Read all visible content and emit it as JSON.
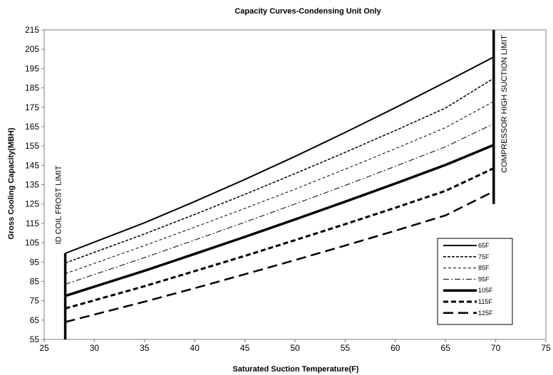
{
  "chart_data": {
    "type": "line",
    "title": "Capacity Curves-Condensing Unit Only",
    "xlabel": "Saturated Suction Temperature(F)",
    "ylabel": "Gross Cooling Capacity(MBH)",
    "xlim": [
      25,
      75
    ],
    "ylim": [
      55,
      215
    ],
    "x_ticks": [
      25,
      30,
      35,
      40,
      45,
      50,
      55,
      60,
      65,
      70,
      75
    ],
    "y_ticks": [
      55,
      65,
      75,
      85,
      95,
      105,
      115,
      125,
      135,
      145,
      155,
      165,
      175,
      185,
      195,
      205,
      215
    ],
    "grid": false,
    "legend_position": "bottom-right",
    "x": [
      27.1,
      35,
      40,
      45,
      50,
      55,
      60,
      65,
      69.8
    ],
    "series": [
      {
        "name": "65F",
        "style": "solid-medium",
        "values": [
          99.5,
          115.3,
          126.3,
          137.7,
          149.6,
          162.0,
          174.8,
          188.0,
          201.0
        ]
      },
      {
        "name": "75F",
        "style": "short-dash",
        "values": [
          94.5,
          109.5,
          119.6,
          130.0,
          140.7,
          151.7,
          163.0,
          174.6,
          190.0
        ]
      },
      {
        "name": "85F",
        "style": "fine-dash",
        "values": [
          89.0,
          103.5,
          113.0,
          122.7,
          132.7,
          143.0,
          153.6,
          164.5,
          178.0
        ]
      },
      {
        "name": "95F",
        "style": "dash-dot",
        "values": [
          83.5,
          97.3,
          106.4,
          115.6,
          125.0,
          134.6,
          144.5,
          154.6,
          166.5
        ]
      },
      {
        "name": "105F",
        "style": "solid-thick",
        "values": [
          77.5,
          90.5,
          99.2,
          108.0,
          117.0,
          126.2,
          135.6,
          145.2,
          155.5
        ]
      },
      {
        "name": "115F",
        "style": "thick-dash",
        "values": [
          71.0,
          82.5,
          90.3,
          98.2,
          106.3,
          114.6,
          123.1,
          131.8,
          143.5
        ]
      },
      {
        "name": "125F",
        "style": "long-dash",
        "values": [
          64.0,
          74.5,
          81.5,
          88.7,
          96.0,
          103.5,
          111.2,
          119.1,
          131.5
        ]
      }
    ],
    "limit_lines": [
      {
        "label": "ID COIL FROST LIMIT",
        "x": 27.1,
        "y_range": [
          55,
          99.5
        ]
      },
      {
        "label": "COMPRESSOR HIGH SUCTION LIMIT",
        "x": 69.8,
        "y_range": [
          125,
          215
        ]
      }
    ]
  }
}
